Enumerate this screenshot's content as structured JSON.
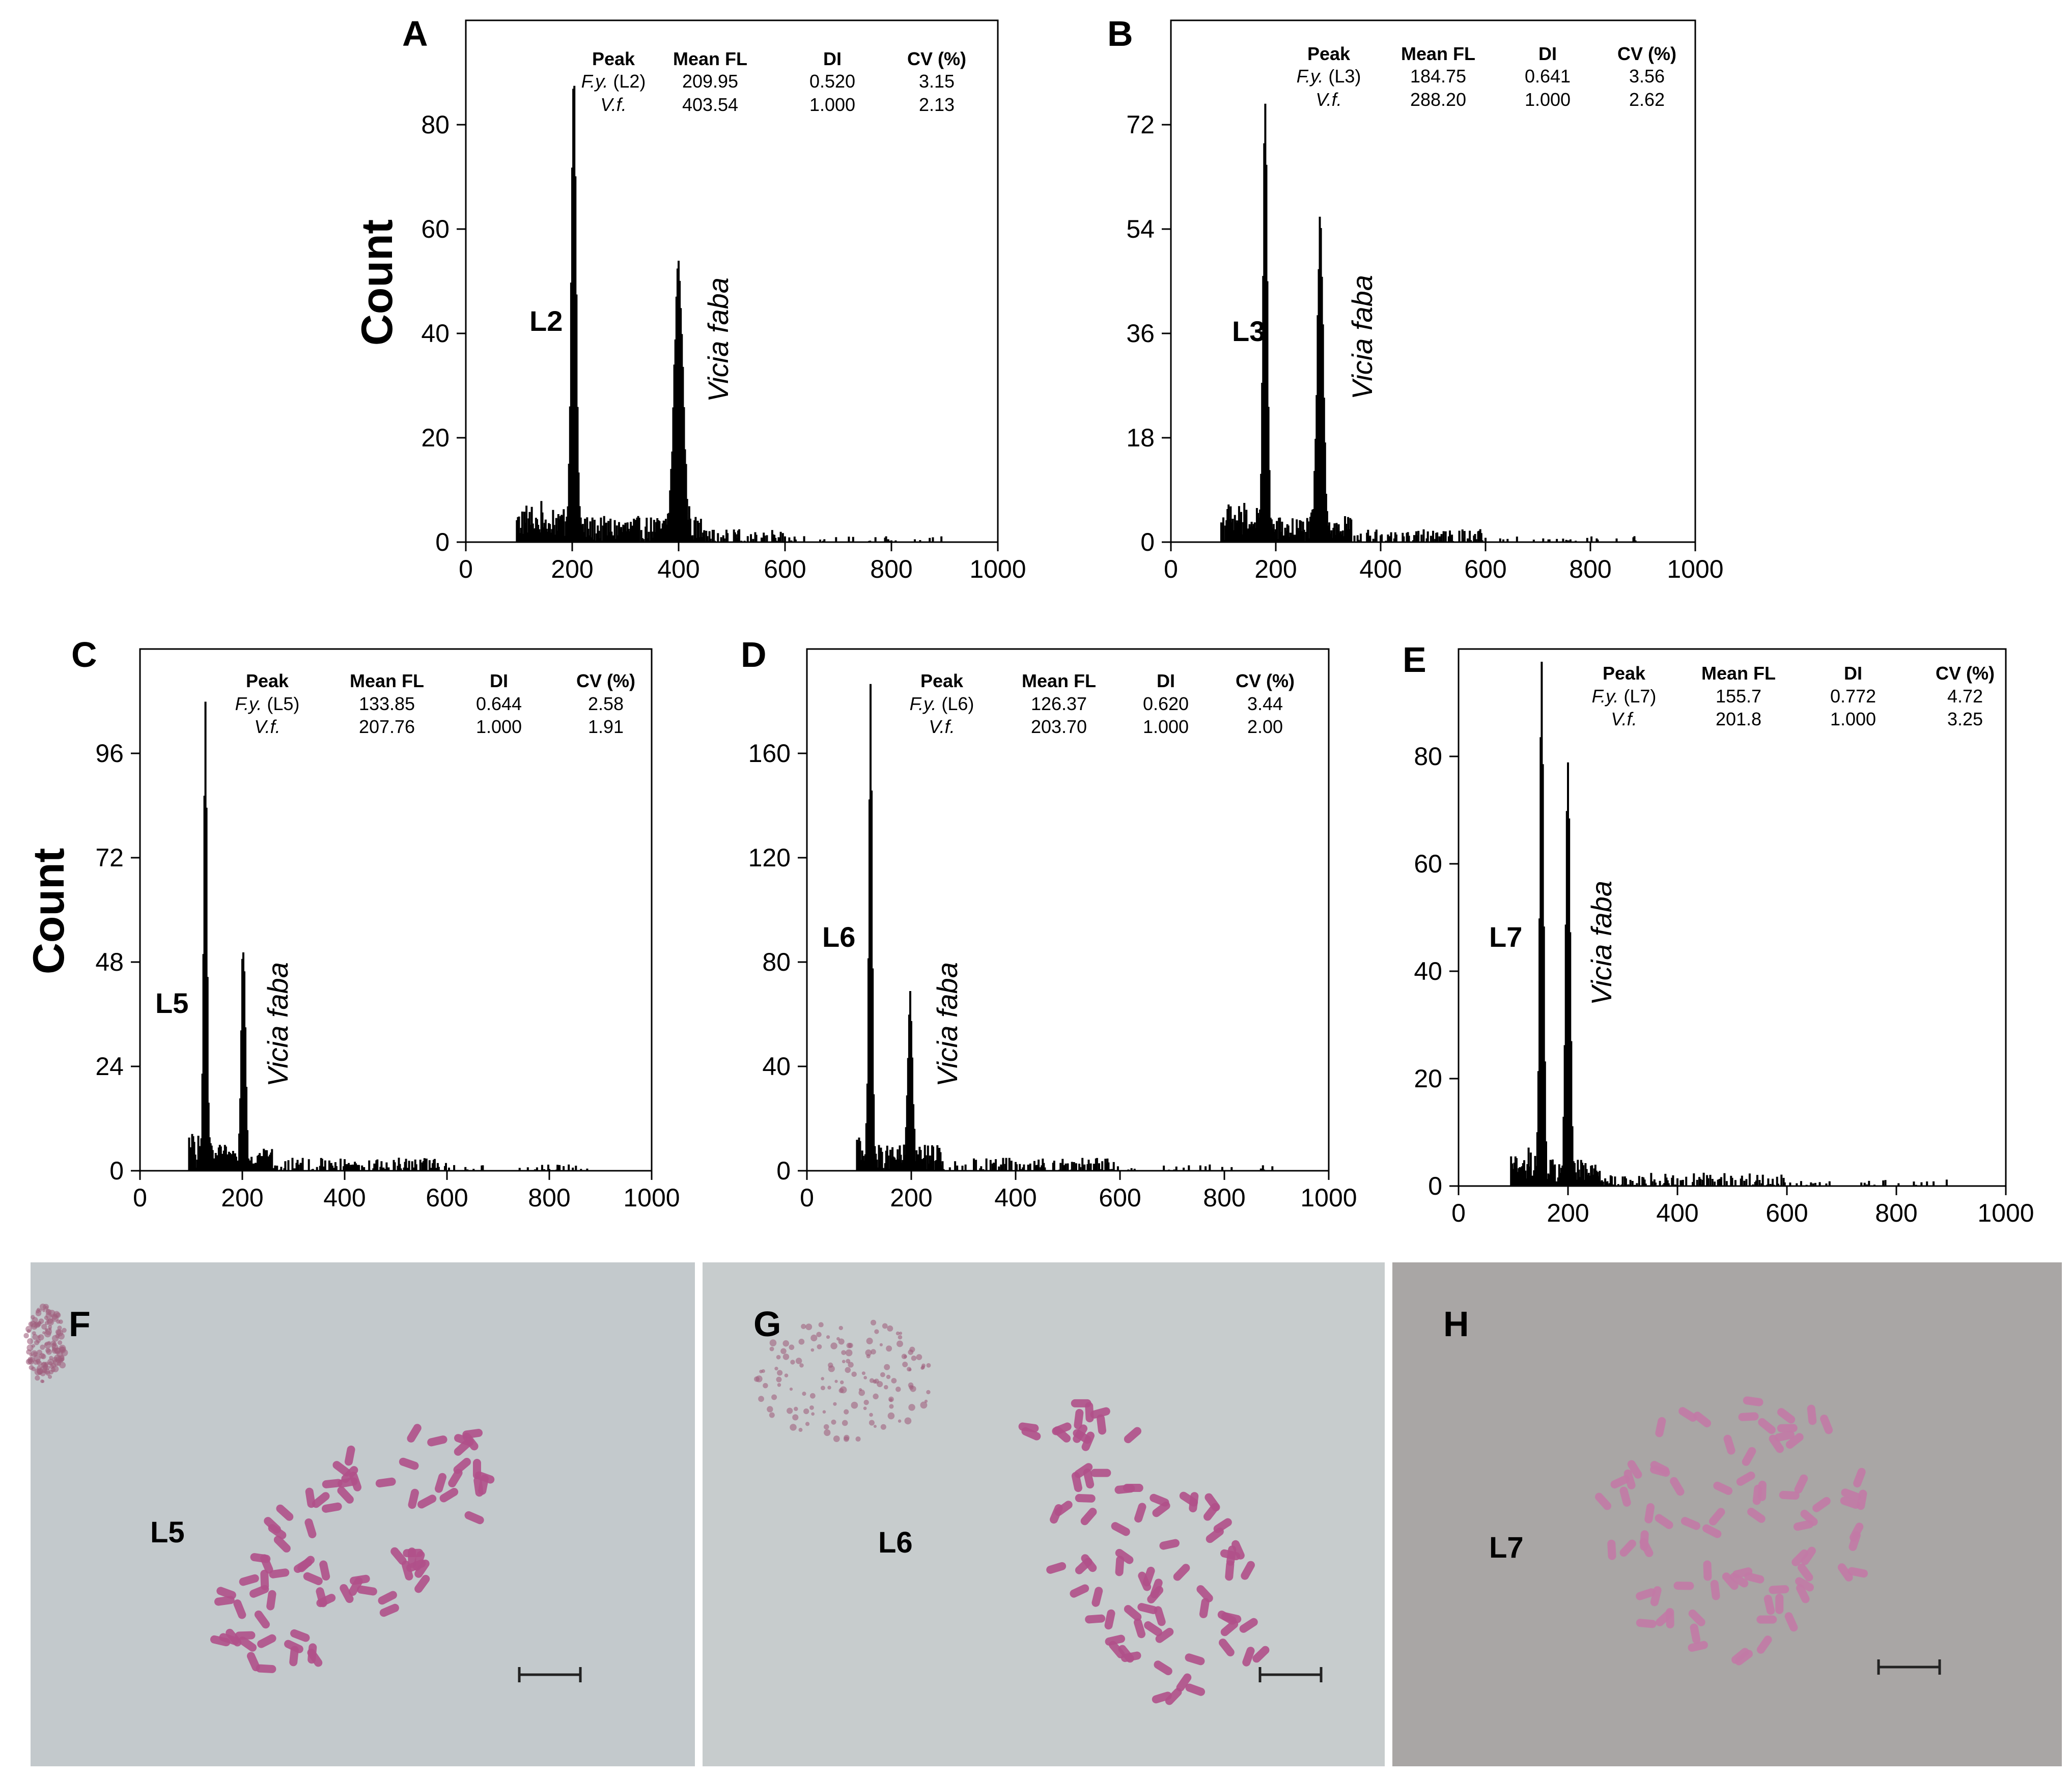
{
  "chart_data": [
    {
      "type": "bar",
      "panel": "A",
      "ylabel": "Count",
      "xlim": [
        0,
        1000
      ],
      "ylim": [
        0,
        100
      ],
      "yticks": [
        0,
        20,
        40,
        60,
        80
      ],
      "xticks": [
        0,
        200,
        400,
        600,
        800,
        1000
      ],
      "peaks": [
        {
          "label": "L2",
          "position": 203,
          "height": 84
        },
        {
          "label": "Vicia faba",
          "position": 400,
          "height": 50
        }
      ],
      "table": {
        "headers": [
          "Peak",
          "Mean FL",
          "DI",
          "CV (%)"
        ],
        "rows": [
          {
            "peak": "F.y.",
            "line": "(L2)",
            "mean_fl": "209.95",
            "di": "0.520",
            "cv": "3.15"
          },
          {
            "peak": "V.f.",
            "line": "",
            "mean_fl": "403.54",
            "di": "1.000",
            "cv": "2.13"
          }
        ]
      }
    },
    {
      "type": "bar",
      "panel": "B",
      "ylabel": "",
      "xlim": [
        0,
        1000
      ],
      "ylim": [
        0,
        90
      ],
      "yticks": [
        0,
        18,
        36,
        54,
        72
      ],
      "xticks": [
        0,
        200,
        400,
        600,
        800,
        1000
      ],
      "peaks": [
        {
          "label": "L3",
          "position": 180,
          "height": 72
        },
        {
          "label": "Vicia faba",
          "position": 285,
          "height": 52
        }
      ],
      "table": {
        "headers": [
          "Peak",
          "Mean FL",
          "DI",
          "CV (%)"
        ],
        "rows": [
          {
            "peak": "F.y.",
            "line": "(L3)",
            "mean_fl": "184.75",
            "di": "0.641",
            "cv": "3.56"
          },
          {
            "peak": "V.f.",
            "line": "",
            "mean_fl": "288.20",
            "di": "1.000",
            "cv": "2.62"
          }
        ]
      }
    },
    {
      "type": "bar",
      "panel": "C",
      "ylabel": "Count",
      "xlim": [
        0,
        1000
      ],
      "ylim": [
        0,
        120
      ],
      "yticks": [
        0,
        24,
        48,
        72,
        96
      ],
      "xticks": [
        0,
        200,
        400,
        600,
        800,
        1000
      ],
      "peaks": [
        {
          "label": "L5",
          "position": 128,
          "height": 102
        },
        {
          "label": "Vicia faba",
          "position": 202,
          "height": 50
        }
      ],
      "table": {
        "headers": [
          "Peak",
          "Mean FL",
          "DI",
          "CV (%)"
        ],
        "rows": [
          {
            "peak": "F.y.",
            "line": "(L5)",
            "mean_fl": "133.85",
            "di": "0.644",
            "cv": "2.58"
          },
          {
            "peak": "V.f.",
            "line": "",
            "mean_fl": "207.76",
            "di": "1.000",
            "cv": "1.91"
          }
        ]
      }
    },
    {
      "type": "bar",
      "panel": "D",
      "ylabel": "",
      "xlim": [
        0,
        1000
      ],
      "ylim": [
        0,
        200
      ],
      "yticks": [
        0,
        40,
        80,
        120,
        160
      ],
      "xticks": [
        0,
        200,
        400,
        600,
        800,
        1000
      ],
      "peaks": [
        {
          "label": "L6",
          "position": 122,
          "height": 177
        },
        {
          "label": "Vicia faba",
          "position": 198,
          "height": 64
        }
      ],
      "table": {
        "headers": [
          "Peak",
          "Mean FL",
          "DI",
          "CV (%)"
        ],
        "rows": [
          {
            "peak": "F.y.",
            "line": "(L6)",
            "mean_fl": "126.37",
            "di": "0.620",
            "cv": "3.44"
          },
          {
            "peak": "V.f.",
            "line": "",
            "mean_fl": "203.70",
            "di": "1.000",
            "cv": "2.00"
          }
        ]
      }
    },
    {
      "type": "bar",
      "panel": "E",
      "ylabel": "",
      "xlim": [
        0,
        1000
      ],
      "ylim": [
        0,
        100
      ],
      "yticks": [
        0,
        20,
        40,
        60,
        80
      ],
      "xticks": [
        0,
        200,
        400,
        600,
        800,
        1000
      ],
      "peaks": [
        {
          "label": "L7",
          "position": 152,
          "height": 93
        },
        {
          "label": "Vicia faba",
          "position": 200,
          "height": 74
        }
      ],
      "table": {
        "headers": [
          "Peak",
          "Mean FL",
          "DI",
          "CV (%)"
        ],
        "rows": [
          {
            "peak": "F.y.",
            "line": "(L7)",
            "mean_fl": "155.7",
            "di": "0.772",
            "cv": "4.72"
          },
          {
            "peak": "V.f.",
            "line": "",
            "mean_fl": "201.8",
            "di": "1.000",
            "cv": "3.25"
          }
        ]
      }
    }
  ],
  "micrographs": [
    {
      "panel": "F",
      "label": "L5"
    },
    {
      "panel": "G",
      "label": "L6"
    },
    {
      "panel": "H",
      "label": "L7"
    }
  ]
}
